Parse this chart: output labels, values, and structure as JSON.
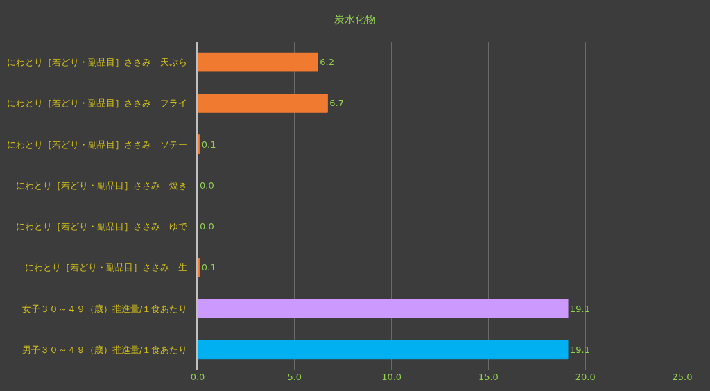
{
  "chart_data": {
    "type": "bar",
    "orientation": "horizontal",
    "title": "炭水化物",
    "categories": [
      "にわとり［若どり・副品目］ささみ　天ぷら",
      "にわとり［若どり・副品目］ささみ　フライ",
      "にわとり［若どり・副品目］ささみ　ソテー",
      "にわとり［若どり・副品目］ささみ　焼き",
      "にわとり［若どり・副品目］ささみ　ゆで",
      "にわとり［若どり・副品目］ささみ　生",
      "女子３０～４９（歳）推進量/１食あたり",
      "男子３０～４９（歳）推進量/１食あたり"
    ],
    "values": [
      6.2,
      6.7,
      0.1,
      0.0,
      0.0,
      0.1,
      19.1,
      19.1
    ],
    "value_labels": [
      "6.2",
      "6.7",
      "0.1",
      "0.0",
      "0.0",
      "0.1",
      "19.1",
      "19.1"
    ],
    "colors": [
      "#f07a30",
      "#f07a30",
      "#f07a30",
      "#f07a30",
      "#f07a30",
      "#f07a30",
      "#cc99ff",
      "#00b0f0"
    ],
    "xlim": [
      0,
      25
    ],
    "xticks": [
      {
        "value": 0,
        "label": "0.0"
      },
      {
        "value": 5,
        "label": "5.0"
      },
      {
        "value": 10,
        "label": "10.0"
      },
      {
        "value": 15,
        "label": "15.0"
      },
      {
        "value": 20,
        "label": "20.0"
      },
      {
        "value": 25,
        "label": "25.0"
      }
    ],
    "grid": "x"
  }
}
